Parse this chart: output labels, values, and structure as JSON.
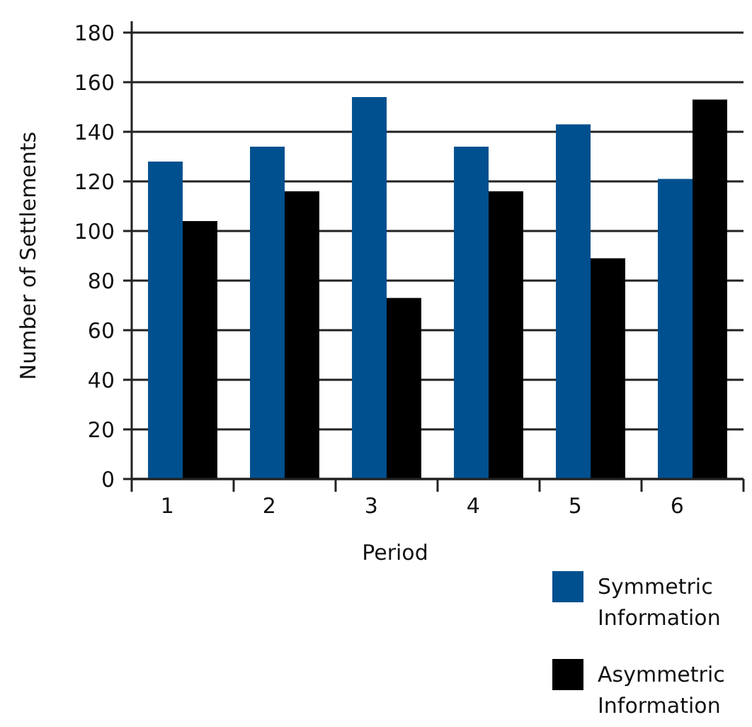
{
  "chart_data": {
    "type": "bar",
    "xlabel": "Period",
    "ylabel": "Number of Settlements",
    "categories": [
      "1",
      "2",
      "3",
      "4",
      "5",
      "6"
    ],
    "series": [
      {
        "name": "Symmetric Information",
        "color": "#00508f",
        "values": [
          128,
          134,
          154,
          134,
          143,
          121
        ]
      },
      {
        "name": "Asymmetric Information",
        "color": "#000000",
        "values": [
          104,
          116,
          73,
          116,
          89,
          153
        ]
      }
    ],
    "ylim": [
      0,
      180
    ],
    "yticks": [
      0,
      20,
      40,
      60,
      80,
      100,
      120,
      140,
      160,
      180
    ],
    "grid": "y",
    "legend": "bottom right"
  }
}
